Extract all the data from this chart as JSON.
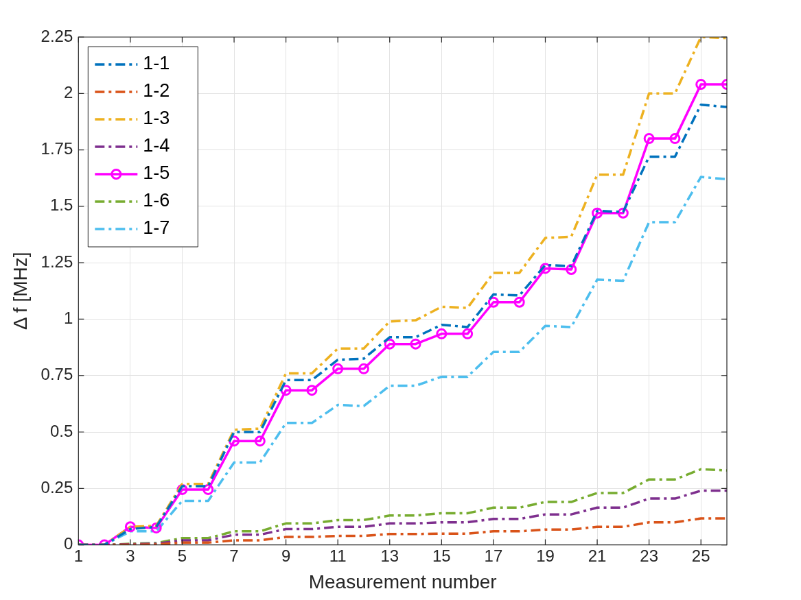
{
  "chart_data": {
    "type": "line",
    "xlabel": "Measurement number",
    "ylabel": "Δ f [MHz]",
    "x": [
      1,
      2,
      3,
      4,
      5,
      6,
      7,
      8,
      9,
      10,
      11,
      12,
      13,
      14,
      15,
      16,
      17,
      18,
      19,
      20,
      21,
      22,
      23,
      24,
      25,
      26
    ],
    "xlim": [
      1,
      26
    ],
    "xticks": [
      1,
      3,
      5,
      7,
      9,
      11,
      13,
      15,
      17,
      19,
      21,
      23,
      25
    ],
    "ylim": [
      0,
      2.25
    ],
    "yticks": [
      0,
      0.25,
      0.5,
      0.75,
      1,
      1.25,
      1.5,
      1.75,
      2,
      2.25
    ],
    "grid": true,
    "legend": "top left",
    "series": [
      {
        "name": "1-1",
        "color": "#0072bd",
        "line_style": "dashed",
        "marker": "none",
        "values": [
          0,
          0,
          0.07,
          0.08,
          0.26,
          0.26,
          0.5,
          0.5,
          0.73,
          0.73,
          0.82,
          0.825,
          0.92,
          0.92,
          0.975,
          0.965,
          1.11,
          1.105,
          1.24,
          1.235,
          1.48,
          1.475,
          1.72,
          1.72,
          1.95,
          1.94
        ]
      },
      {
        "name": "1-2",
        "color": "#d95319",
        "line_style": "dashed",
        "marker": "none",
        "values": [
          0,
          0,
          0.001,
          0.002,
          0.01,
          0.01,
          0.02,
          0.02,
          0.035,
          0.035,
          0.04,
          0.04,
          0.048,
          0.048,
          0.05,
          0.05,
          0.06,
          0.06,
          0.068,
          0.068,
          0.08,
          0.08,
          0.1,
          0.1,
          0.117,
          0.117
        ]
      },
      {
        "name": "1-3",
        "color": "#edb120",
        "line_style": "dashed",
        "marker": "none",
        "values": [
          0,
          0,
          0.08,
          0.085,
          0.27,
          0.27,
          0.51,
          0.515,
          0.76,
          0.76,
          0.87,
          0.87,
          0.99,
          0.995,
          1.055,
          1.05,
          1.205,
          1.205,
          1.36,
          1.365,
          1.64,
          1.64,
          2.0,
          2.0,
          2.25,
          2.245
        ]
      },
      {
        "name": "1-4",
        "color": "#7e2f8e",
        "line_style": "dashed",
        "marker": "none",
        "values": [
          0,
          0,
          0.003,
          0.005,
          0.02,
          0.02,
          0.045,
          0.045,
          0.07,
          0.07,
          0.08,
          0.08,
          0.095,
          0.095,
          0.1,
          0.1,
          0.115,
          0.115,
          0.135,
          0.135,
          0.165,
          0.165,
          0.205,
          0.205,
          0.24,
          0.24
        ]
      },
      {
        "name": "1-5",
        "color": "#ff00ff",
        "line_style": "solid",
        "marker": "circle",
        "values": [
          0,
          0,
          0.08,
          0.075,
          0.245,
          0.245,
          0.46,
          0.46,
          0.685,
          0.685,
          0.78,
          0.78,
          0.89,
          0.89,
          0.935,
          0.935,
          1.075,
          1.075,
          1.225,
          1.22,
          1.47,
          1.47,
          1.8,
          1.8,
          2.04,
          2.04
        ]
      },
      {
        "name": "1-6",
        "color": "#77ac30",
        "line_style": "dashed",
        "marker": "none",
        "values": [
          0,
          0,
          0.005,
          0.008,
          0.03,
          0.03,
          0.06,
          0.06,
          0.095,
          0.095,
          0.11,
          0.11,
          0.13,
          0.13,
          0.14,
          0.14,
          0.165,
          0.165,
          0.19,
          0.19,
          0.23,
          0.23,
          0.29,
          0.29,
          0.335,
          0.33
        ]
      },
      {
        "name": "1-7",
        "color": "#4dbeee",
        "line_style": "dashed",
        "marker": "none",
        "values": [
          0,
          0,
          0.06,
          0.06,
          0.195,
          0.195,
          0.365,
          0.365,
          0.54,
          0.54,
          0.62,
          0.615,
          0.705,
          0.705,
          0.745,
          0.745,
          0.855,
          0.855,
          0.97,
          0.965,
          1.175,
          1.17,
          1.43,
          1.43,
          1.63,
          1.62
        ]
      }
    ]
  }
}
